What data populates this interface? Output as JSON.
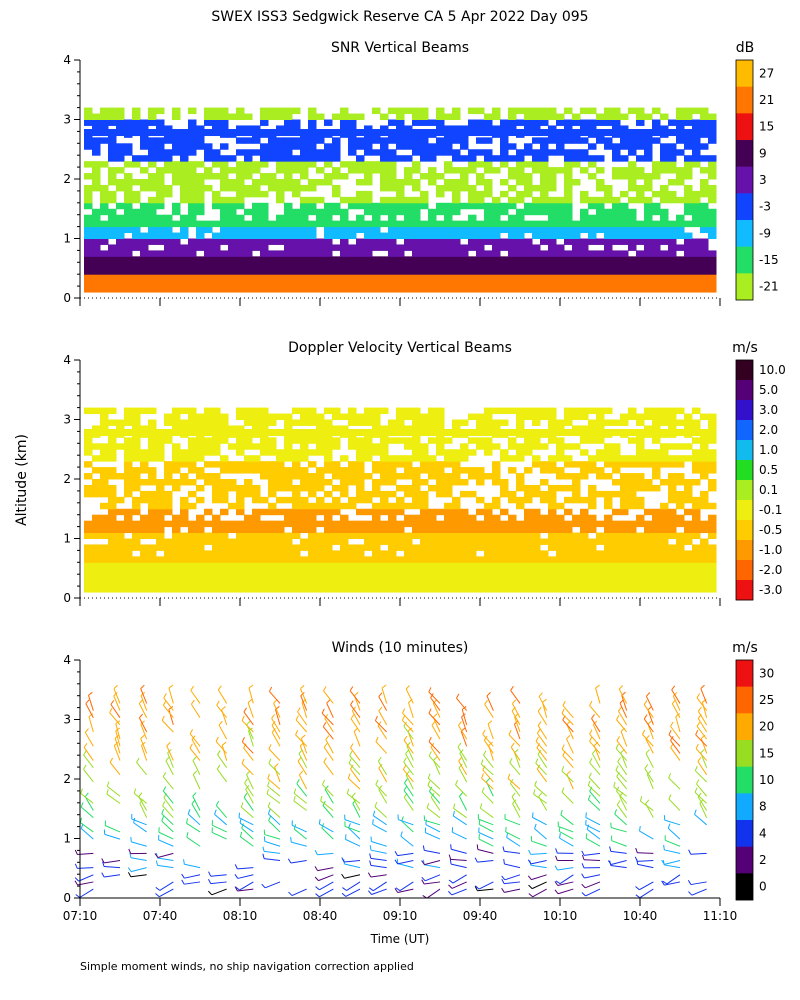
{
  "figure": {
    "title": "SWEX ISS3 Sedgwick Reserve CA   5 Apr 2022 Day 095",
    "ylabel": "Altitude (km)",
    "xlabel": "Time (UT)",
    "footnote": "Simple moment winds, no ship navigation correction applied",
    "x_ticks": [
      "07:10",
      "07:40",
      "08:10",
      "08:40",
      "09:10",
      "09:40",
      "10:10",
      "10:40",
      "11:10"
    ],
    "y_ticks": [
      "0",
      "1",
      "2",
      "3",
      "4"
    ]
  },
  "chart_data": [
    {
      "type": "heatmap",
      "title": "SNR Vertical Beams",
      "unit": "dB",
      "xlim": [
        "07:10",
        "11:10"
      ],
      "ylim": [
        0,
        4
      ],
      "colorbar": {
        "labels": [
          "27",
          "21",
          "15",
          "9",
          "3",
          "-3",
          "-9",
          "-15",
          "-21"
        ],
        "colors": [
          "#ffbb00",
          "#ff7700",
          "#ee1111",
          "#440055",
          "#6611aa",
          "#1144ff",
          "#11bbff",
          "#22dd66",
          "#aaee22"
        ]
      },
      "profile": [
        {
          "alt_km": 0.2,
          "value": 21
        },
        {
          "alt_km": 0.5,
          "value": 9
        },
        {
          "alt_km": 0.8,
          "value": 3
        },
        {
          "alt_km": 1.0,
          "value": -9
        },
        {
          "alt_km": 1.3,
          "value": -15
        },
        {
          "alt_km": 1.8,
          "value": -21
        },
        {
          "alt_km": 2.8,
          "value": -3
        },
        {
          "alt_km": 3.1,
          "value": -21
        }
      ]
    },
    {
      "type": "heatmap",
      "title": "Doppler Velocity Vertical Beams",
      "unit": "m/s",
      "xlim": [
        "07:10",
        "11:10"
      ],
      "ylim": [
        0,
        4
      ],
      "colorbar": {
        "labels": [
          "10.0",
          "5.0",
          "3.0",
          "2.0",
          "1.0",
          "0.5",
          "0.1",
          "-0.1",
          "-0.5",
          "-1.0",
          "-2.0",
          "-3.0"
        ],
        "colors": [
          "#330022",
          "#550077",
          "#3311cc",
          "#1166ff",
          "#11bbee",
          "#22dd22",
          "#aaee22",
          "#eeee11",
          "#ffcc00",
          "#ff9900",
          "#ff6600",
          "#ee1111"
        ]
      },
      "profile": [
        {
          "alt_km": 0.3,
          "value": -0.1
        },
        {
          "alt_km": 0.8,
          "value": -0.5
        },
        {
          "alt_km": 1.2,
          "value": -1.0
        },
        {
          "alt_km": 1.8,
          "value": -0.5
        },
        {
          "alt_km": 2.8,
          "value": -0.1
        }
      ]
    },
    {
      "type": "scatter",
      "title": "Winds (10 minutes)",
      "unit": "m/s",
      "xlim": [
        "07:10",
        "11:10"
      ],
      "ylim": [
        0,
        4
      ],
      "colorbar": {
        "labels": [
          "30",
          "25",
          "20",
          "15",
          "10",
          "8",
          "4",
          "2",
          "0"
        ],
        "colors": [
          "#ee1111",
          "#ff6600",
          "#ffaa00",
          "#99dd22",
          "#22dd66",
          "#11aaff",
          "#1133ee",
          "#550077",
          "#000000"
        ]
      },
      "profile": [
        {
          "alt_km": 0.2,
          "speed": 3,
          "dir_deg": 250
        },
        {
          "alt_km": 0.6,
          "speed": 5,
          "dir_deg": 270
        },
        {
          "alt_km": 1.0,
          "speed": 9,
          "dir_deg": 300
        },
        {
          "alt_km": 1.5,
          "speed": 14,
          "dir_deg": 320
        },
        {
          "alt_km": 2.0,
          "speed": 17,
          "dir_deg": 325
        },
        {
          "alt_km": 2.5,
          "speed": 20,
          "dir_deg": 330
        },
        {
          "alt_km": 3.0,
          "speed": 22,
          "dir_deg": 330
        }
      ]
    }
  ]
}
